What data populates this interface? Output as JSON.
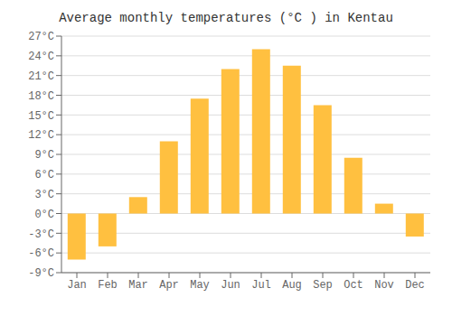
{
  "chart_data": {
    "type": "bar",
    "title": "Average monthly temperatures (°C ) in Kentau",
    "categories": [
      "Jan",
      "Feb",
      "Mar",
      "Apr",
      "May",
      "Jun",
      "Jul",
      "Aug",
      "Sep",
      "Oct",
      "Nov",
      "Dec"
    ],
    "values": [
      -7,
      -5,
      2.5,
      11,
      17.5,
      22,
      25,
      22.5,
      16.5,
      8.5,
      1.5,
      -3.5
    ],
    "color": "#FFC040",
    "ylim": [
      -9,
      27
    ],
    "yticks": [
      {
        "value": -9,
        "label": "-9°C"
      },
      {
        "value": -6,
        "label": "-6°C"
      },
      {
        "value": -3,
        "label": "-3°C"
      },
      {
        "value": 0,
        "label": "0°C"
      },
      {
        "value": 3,
        "label": "3°C"
      },
      {
        "value": 6,
        "label": "6°C"
      },
      {
        "value": 9,
        "label": "9°C"
      },
      {
        "value": 12,
        "label": "12°C"
      },
      {
        "value": 15,
        "label": "15°C"
      },
      {
        "value": 18,
        "label": "18°C"
      },
      {
        "value": 21,
        "label": "21°C"
      },
      {
        "value": 24,
        "label": "24°C"
      },
      {
        "value": 27,
        "label": "27°C"
      }
    ],
    "grid": true
  }
}
